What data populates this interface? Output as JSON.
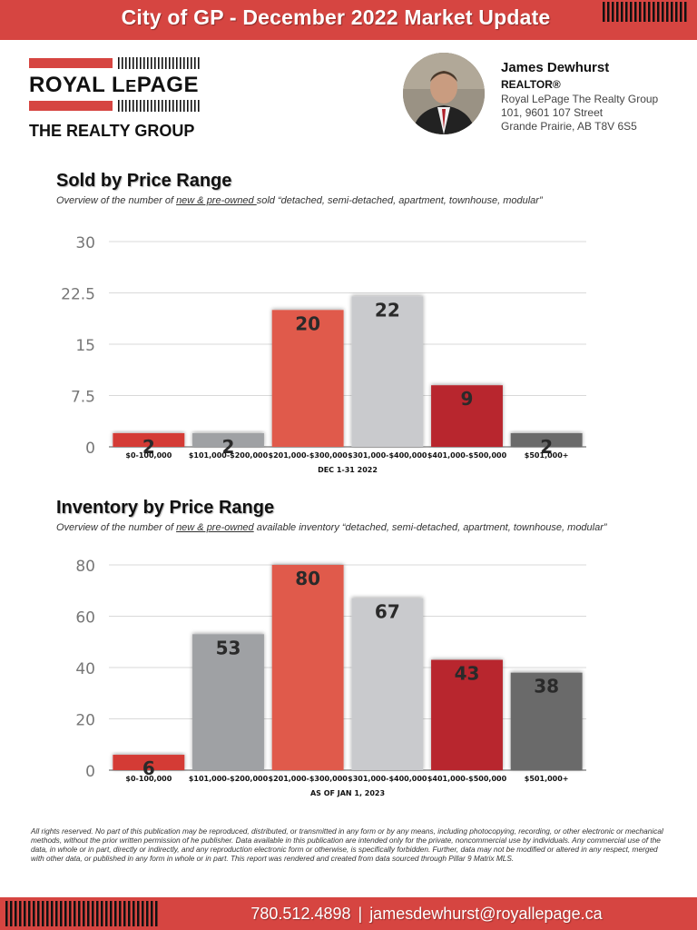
{
  "header": {
    "title": "City of GP - December 2022 Market Update"
  },
  "logo": {
    "brand_main": "ROYAL L",
    "brand_small": "E",
    "brand_end": "PAGE",
    "subtitle": "THE REALTY GROUP"
  },
  "agent": {
    "name": "James Dewhurst",
    "role": "REALTOR®",
    "company": "Royal LePage The Realty Group",
    "address1": "101, 9601 107 Street",
    "address2": "Grande Prairie, AB T8V 6S5"
  },
  "sold_section": {
    "title": "Sold by Price Range",
    "sub_before": "Overview of the number of ",
    "sub_underlined": "new & pre-owned ",
    "sub_after": "sold “detached, semi-detached, apartment, townhouse, modular”"
  },
  "inventory_section": {
    "title": "Inventory by Price Range",
    "sub_before": "Overview of the number of ",
    "sub_underlined": "new & pre-owned",
    "sub_after": " available inventory “detached, semi-detached, apartment, townhouse, modular”"
  },
  "chart_data": [
    {
      "type": "bar",
      "categories": [
        "$0-100,000",
        "$101,000-$200,000",
        "$201,000-$300,000",
        "$301,000-$400,000",
        "$401,000-$500,000",
        "$501,000+"
      ],
      "values": [
        2,
        2,
        20,
        22,
        9,
        2
      ],
      "colors": [
        "#d43a35",
        "#9fa1a4",
        "#e05a4c",
        "#c9cacd",
        "#b8282f",
        "#6b6b6b"
      ],
      "xlabel": "DEC 1-31 2022",
      "ylabel": "",
      "ylim": [
        0,
        30
      ],
      "yticks": [
        "0",
        "7.5",
        "15",
        "22.5",
        "30"
      ],
      "grid": true
    },
    {
      "type": "bar",
      "categories": [
        "$0-100,000",
        "$101,000-$200,000",
        "$201,000-$300,000",
        "$301,000-$400,000",
        "$401,000-$500,000",
        "$501,000+"
      ],
      "values": [
        6,
        53,
        80,
        67,
        43,
        38
      ],
      "colors": [
        "#d43a35",
        "#9fa1a4",
        "#e05a4c",
        "#c9cacd",
        "#b8282f",
        "#6b6b6b"
      ],
      "xlabel": "AS OF JAN 1, 2023",
      "ylabel": "",
      "ylim": [
        0,
        80
      ],
      "yticks": [
        "0",
        "20",
        "40",
        "60",
        "80"
      ],
      "grid": true
    }
  ],
  "disclaimer": "All rights reserved. No part of this publication may be reproduced, distributed, or transmitted in any form or by any means, including photocopying, recording, or other electronic or mechanical methods, without the prior written permission of he publisher. Data available in this publication are intended only for the private, noncommercial use by individuals. Any commercial use of the data, in whole or in part, directly or indirectly, and any reproduction electronic form or otherwise, is specifically forbidden. Further, data may not be modified or altered in any respect, merged with other data, or published in any form in whole or in part. This report was rendered and created from data sourced through Pillar 9 Matrix MLS.",
  "footer": {
    "phone": "780.512.4898",
    "separator": "|",
    "email": "jamesdewhurst@royallepage.ca"
  },
  "colors": {
    "brand_red": "#d64541"
  }
}
